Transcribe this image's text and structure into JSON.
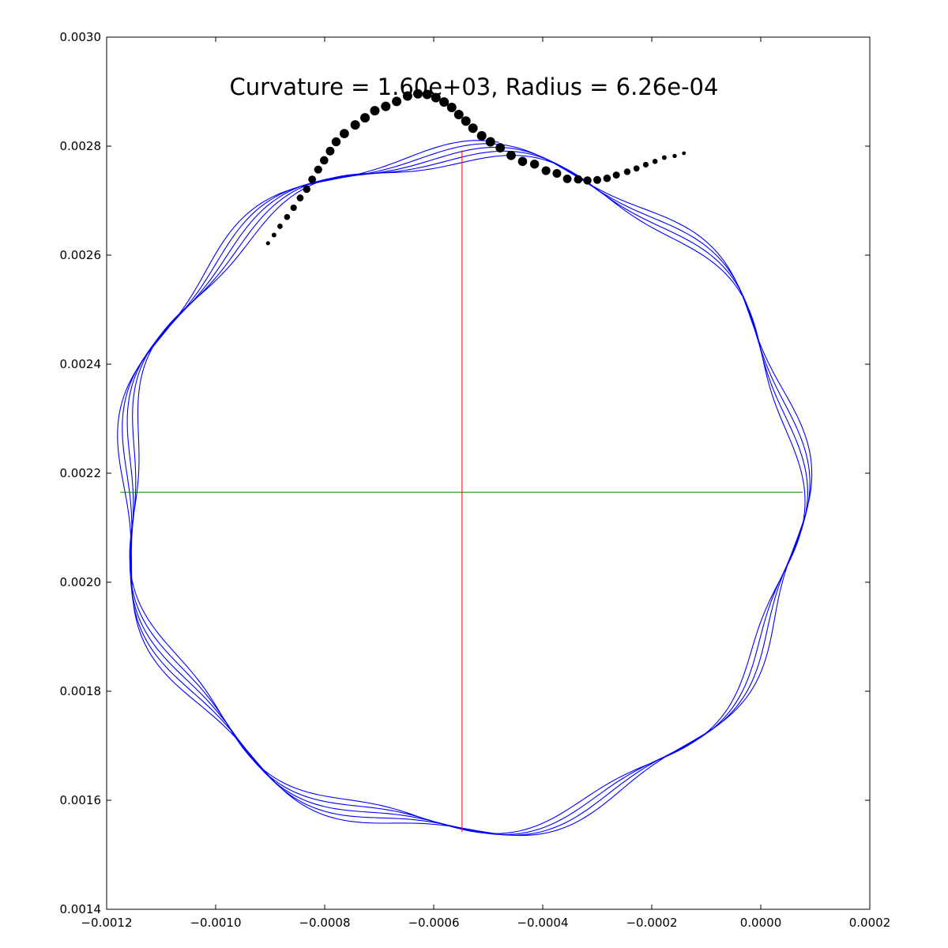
{
  "chart_data": {
    "type": "line",
    "title": "Curvature = 1.60e+03, Radius = 6.26e-04",
    "xlabel": "",
    "ylabel": "",
    "xlim": [
      -0.0012,
      0.0002
    ],
    "ylim": [
      0.0014,
      0.003
    ],
    "x_ticks": [
      "−0.0012",
      "−0.0010",
      "−0.0008",
      "−0.0006",
      "−0.0004",
      "−0.0002",
      "0.0000",
      "0.0002"
    ],
    "x_tick_values": [
      -0.0012,
      -0.001,
      -0.0008,
      -0.0006,
      -0.0004,
      -0.0002,
      0.0,
      0.0002
    ],
    "y_ticks": [
      "0.0014",
      "0.0016",
      "0.0018",
      "0.0020",
      "0.0022",
      "0.0024",
      "0.0026",
      "0.0028",
      "0.0030"
    ],
    "y_tick_values": [
      0.0014,
      0.0016,
      0.0018,
      0.002,
      0.0022,
      0.0024,
      0.0026,
      0.0028,
      0.003
    ],
    "grid": false,
    "colors": {
      "orbit": "#0000ff",
      "vertical": "#ff0000",
      "horizontal": "#008000",
      "points": "#000000"
    },
    "fitted_circle": {
      "center": [
        -0.000548,
        0.002165
      ],
      "radius": 0.000626
    },
    "orbit_trace": {
      "turns": 4,
      "start_angle_deg": 84,
      "end_angle_deg": 265,
      "mean_radius": 0.000621,
      "radius_drift_per_turn": 4.5e-06,
      "wobble_amplitude": 1.65e-05,
      "wobble_lobes": 9
    },
    "vertical_line": {
      "x": -0.000548,
      "y": [
        0.001542,
        0.002792
      ]
    },
    "horizontal_line": {
      "y": 0.002165,
      "x": [
        -0.001175,
        7.7e-05
      ]
    },
    "curvature_points": {
      "x": [
        -0.000904,
        -0.000893,
        -0.000882,
        -0.000869,
        -0.000857,
        -0.000845,
        -0.000833,
        -0.000823,
        -0.000812,
        -0.000801,
        -0.00079,
        -0.000779,
        -0.000764,
        -0.000744,
        -0.000726,
        -0.000708,
        -0.000688,
        -0.000668,
        -0.000648,
        -0.000629,
        -0.000612,
        -0.000596,
        -0.000581,
        -0.000567,
        -0.000554,
        -0.000541,
        -0.000528,
        -0.000512,
        -0.000496,
        -0.000478,
        -0.000458,
        -0.000437,
        -0.000415,
        -0.000394,
        -0.000374,
        -0.000355,
        -0.000335,
        -0.000318,
        -0.0003,
        -0.000282,
        -0.000265,
        -0.000245,
        -0.000228,
        -0.000211,
        -0.000194,
        -0.000177,
        -0.000158,
        -0.000141
      ],
      "y": [
        0.002622,
        0.002637,
        0.002653,
        0.00267,
        0.002687,
        0.002705,
        0.002721,
        0.002739,
        0.002757,
        0.002774,
        0.002791,
        0.002808,
        0.002823,
        0.002839,
        0.002852,
        0.002865,
        0.002873,
        0.002882,
        0.002892,
        0.002896,
        0.002895,
        0.002889,
        0.002881,
        0.002871,
        0.002858,
        0.002846,
        0.002833,
        0.002819,
        0.002808,
        0.002797,
        0.002783,
        0.002772,
        0.002767,
        0.002755,
        0.00275,
        0.00274,
        0.002739,
        0.002737,
        0.002738,
        0.002741,
        0.002747,
        0.002753,
        0.002759,
        0.002766,
        0.002772,
        0.002779,
        0.002782,
        0.002787
      ],
      "sizes": [
        2.6,
        3.0,
        3.4,
        3.8,
        4.1,
        4.4,
        4.7,
        4.9,
        5.1,
        5.3,
        5.5,
        5.7,
        5.9,
        6.0,
        6.0,
        6.0,
        6.0,
        6.0,
        6.0,
        6.0,
        6.0,
        6.0,
        6.0,
        6.0,
        6.0,
        6.0,
        6.0,
        6.0,
        6.0,
        5.9,
        5.9,
        5.8,
        5.7,
        5.6,
        5.5,
        5.4,
        5.3,
        5.2,
        5.0,
        4.8,
        4.5,
        4.2,
        3.9,
        3.6,
        3.3,
        3.0,
        2.7,
        2.4
      ]
    }
  }
}
